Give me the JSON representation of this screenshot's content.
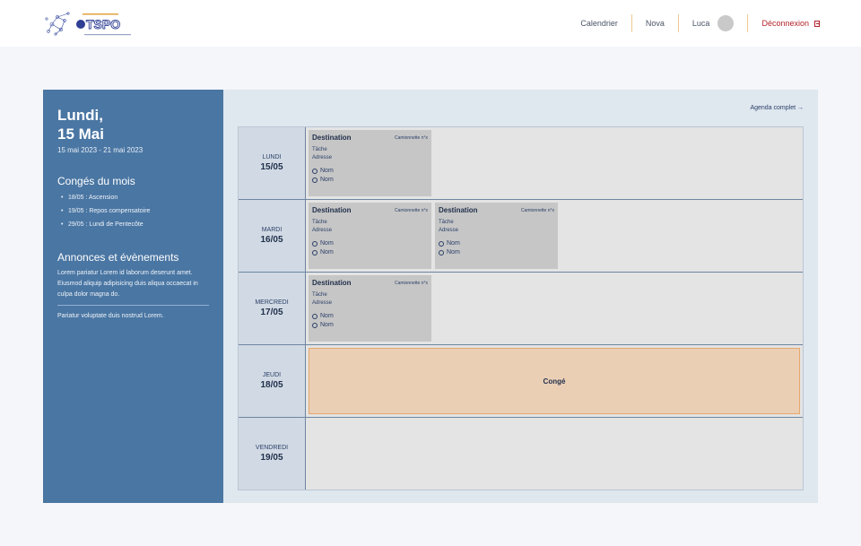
{
  "header": {
    "nav": {
      "calendar": "Calendrier",
      "nova": "Nova",
      "user": "Luca",
      "logout": "Déconnexion"
    }
  },
  "sidebar": {
    "day_line1": "Lundi,",
    "day_line2": "15 Mai",
    "range": "15 mai 2023 - 21 mai 2023",
    "holidays_title": "Congés du mois",
    "holidays": [
      "18/05 : Ascension",
      "19/05 : Repos compensatoire",
      "29/05 : Lundi de Pentecôte"
    ],
    "announcements_title": "Annonces et évènements",
    "announcement1": "Lorem pariatur Lorem id laborum deserunt amet. Eiusmod aliquip adipisicing duis aliqua occaecat in culpa dolor magna do.",
    "announcement2": "Pariatur voluptate duis nostrud Lorem."
  },
  "main": {
    "agenda_link": "Agenda complet →",
    "days": [
      {
        "name": "LUNDI",
        "date": "15/05"
      },
      {
        "name": "MARDI",
        "date": "16/05"
      },
      {
        "name": "MERCREDI",
        "date": "17/05"
      },
      {
        "name": "JEUDI",
        "date": "18/05"
      },
      {
        "name": "VENDREDI",
        "date": "19/05"
      }
    ],
    "card": {
      "destination": "Destination",
      "van": "Camionnette n°x",
      "task": "Tâche",
      "address": "Adresse",
      "name": "Nom"
    },
    "conge": "Congé"
  },
  "colors": {
    "sidebar": "#4a76a3",
    "accent_red": "#b3212a",
    "conge": "#ebcfb5"
  }
}
